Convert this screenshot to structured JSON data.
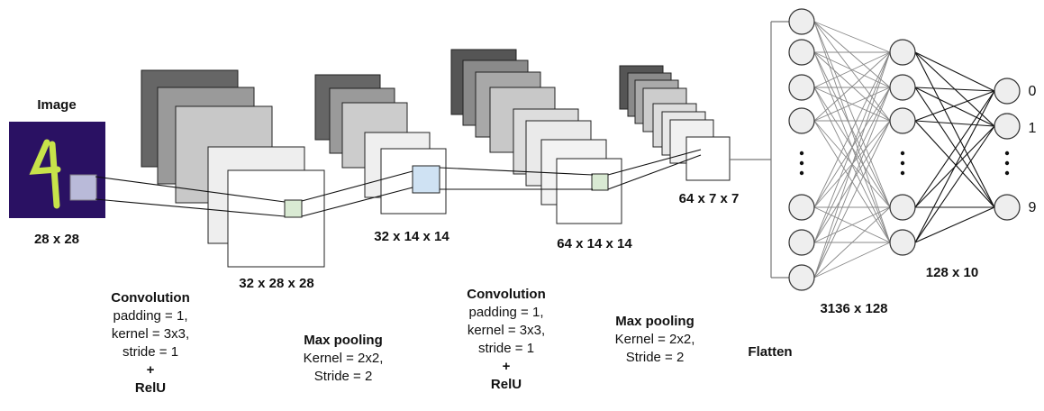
{
  "input": {
    "title": "Image",
    "size": "28 x 28"
  },
  "feature_maps": {
    "conv1": "32 x 28 x 28",
    "pool1": "32 x 14 x 14",
    "conv2": "64 x 14 x 14",
    "pool2": "64 x 7 x 7"
  },
  "operations": {
    "conv1": {
      "title": "Convolution",
      "padding": "padding = 1,",
      "kernel": "kernel = 3x3,",
      "stride": "stride = 1",
      "plus": "+",
      "activation": "RelU"
    },
    "pool1": {
      "title": "Max pooling",
      "kernel": "Kernel = 2x2,",
      "stride": "Stride = 2"
    },
    "conv2": {
      "title": "Convolution",
      "padding": "padding = 1,",
      "kernel": "kernel = 3x3,",
      "stride": "stride = 1",
      "plus": "+",
      "activation": "RelU"
    },
    "pool2": {
      "title": "Max pooling",
      "kernel": "Kernel = 2x2,",
      "stride": "Stride = 2"
    },
    "flatten": "Flatten"
  },
  "dense": {
    "fc1": "3136 x 128",
    "fc2": "128 x 10",
    "output_labels": [
      "0",
      "1",
      "⋮",
      "9"
    ],
    "ellipsis": "⋮"
  },
  "colors": {
    "image_bg": "#2a1163",
    "image_digit": "#c7e34a",
    "kernel_green": "#d9ead3",
    "kernel_blue": "#cfe2f3",
    "node_fill": "#eeeeee"
  }
}
